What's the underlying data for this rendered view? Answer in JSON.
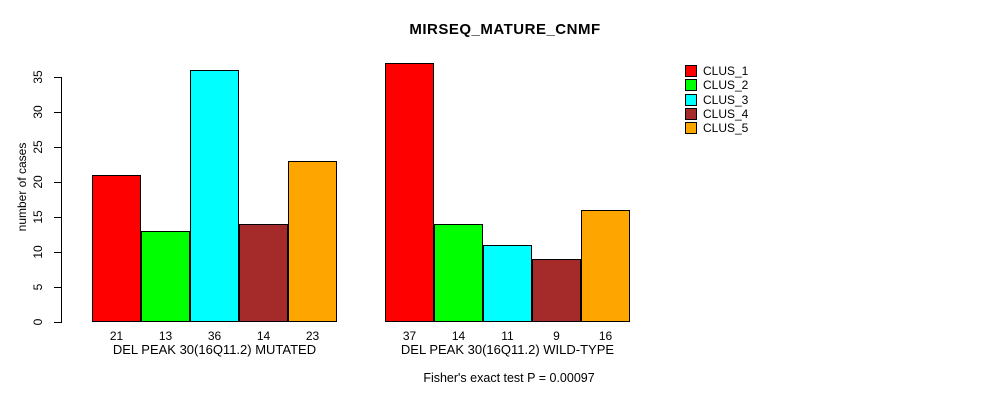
{
  "chart_data": {
    "type": "bar",
    "title": "MIRSEQ_MATURE_CNMF",
    "ylabel": "number of cases",
    "ylim": [
      0,
      35
    ],
    "yticks": [
      0,
      5,
      10,
      15,
      20,
      25,
      30,
      35
    ],
    "grid": false,
    "legend_position": "right",
    "bar_value_labels_shown": true,
    "series": [
      {
        "name": "CLUS_1",
        "color": "#FF0000"
      },
      {
        "name": "CLUS_2",
        "color": "#00FF00"
      },
      {
        "name": "CLUS_3",
        "color": "#00FFFF"
      },
      {
        "name": "CLUS_4",
        "color": "#A52A2A"
      },
      {
        "name": "CLUS_5",
        "color": "#FFA500"
      }
    ],
    "groups": [
      {
        "label": "DEL PEAK 30(16Q11.2) MUTATED",
        "values": [
          21,
          13,
          36,
          14,
          23
        ]
      },
      {
        "label": "DEL PEAK 30(16Q11.2) WILD-TYPE",
        "values": [
          37,
          14,
          11,
          9,
          16
        ]
      }
    ],
    "annotation": "Fisher's exact test P = 0.00097"
  }
}
